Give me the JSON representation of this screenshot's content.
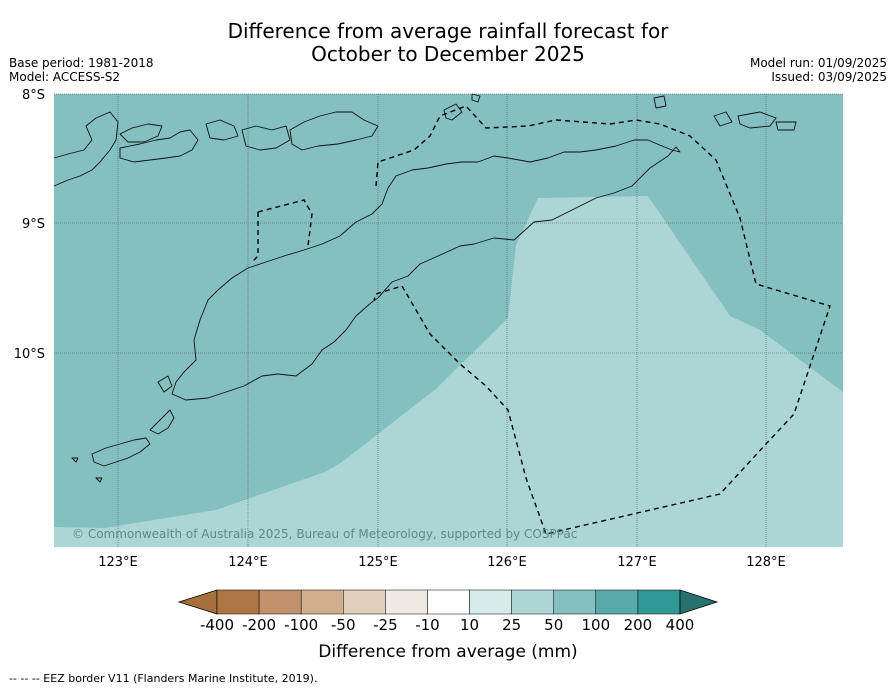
{
  "header": {
    "title_line1": "Difference from average rainfall forecast for",
    "title_line2": "October to December 2025",
    "base_period": "Base period: 1981-2018",
    "model": "Model: ACCESS-S2",
    "model_run": "Model run: 01/09/2025",
    "issued": "Issued: 03/09/2025"
  },
  "map": {
    "lat_labels": [
      "8°S",
      "9°S",
      "10°S"
    ],
    "lon_labels": [
      "123°E",
      "124°E",
      "125°E",
      "126°E",
      "127°E",
      "128°E"
    ],
    "copyright": "© Commonwealth of Australia 2025, Bureau of Meteorology, supported by COSPPac"
  },
  "legend": {
    "tick_labels": [
      "-400",
      "-200",
      "-100",
      "-50",
      "-25",
      "-10",
      "10",
      "25",
      "50",
      "100",
      "200",
      "400"
    ],
    "colors": [
      "#a5703b",
      "#ad7642",
      "#c0916a",
      "#d0ad8c",
      "#e2cfbb",
      "#eee9e3",
      "#ffffff",
      "#d6ecea",
      "#acd6d5",
      "#83c0bf",
      "#58aaa9",
      "#2f9895",
      "#27716f"
    ],
    "label": "Difference from average (mm)"
  },
  "footer": {
    "eez_note": "--  --  -- EEZ border V11 (Flanders Marine Institute, 2019)."
  },
  "colors": {
    "ocean_50_100": "#83c0bf",
    "ocean_25_50": "#acd6d5",
    "grid": "#333333",
    "eez": "#000000"
  }
}
